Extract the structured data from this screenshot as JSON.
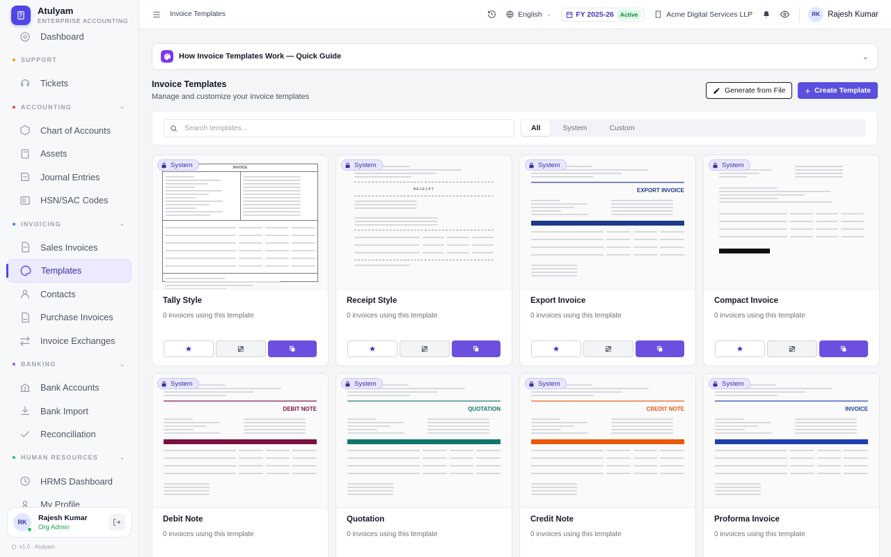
{
  "sidebar": {
    "brand": "Atulyam",
    "brand_sub": "ENTERPRISE ACCOUNTING",
    "top_item": "Dashboard",
    "sections": [
      {
        "label": "SUPPORT",
        "dot": "#f59e0b",
        "items": [
          "Tickets"
        ]
      },
      {
        "label": "ACCOUNTING",
        "dot": "#ef4444",
        "items": [
          "Chart of Accounts",
          "Assets",
          "Journal Entries",
          "HSN/SAC Codes"
        ]
      },
      {
        "label": "INVOICING",
        "dot": "#3b82f6",
        "items": [
          "Sales Invoices",
          "Templates",
          "Contacts",
          "Purchase Invoices",
          "Invoice Exchanges"
        ]
      },
      {
        "label": "BANKING",
        "dot": "#8b5cf6",
        "items": [
          "Bank Accounts",
          "Bank Import",
          "Reconciliation"
        ]
      },
      {
        "label": "HUMAN RESOURCES",
        "dot": "#22c55e",
        "items": [
          "HRMS Dashboard",
          "My Profile"
        ]
      }
    ],
    "user": {
      "initials": "RK",
      "name": "Rajesh Kumar",
      "role": "Org Admin"
    },
    "version": "v1.0 · Atulyam"
  },
  "topbar": {
    "breadcrumb": "Invoice Templates",
    "language": "English",
    "fy": "FY 2025-26",
    "fy_status": "Active",
    "company": "Acme Digital Services LLP",
    "user_initials": "RK",
    "user_name": "Rajesh Kumar"
  },
  "guide": {
    "title": "How Invoice Templates Work — Quick Guide"
  },
  "page": {
    "title": "Invoice Templates",
    "subtitle": "Manage and customize your invoice templates",
    "generate_label": "Generate from File",
    "create_label": "Create Template"
  },
  "filter": {
    "search_placeholder": "Search templates...",
    "tabs": [
      "All",
      "System",
      "Custom"
    ],
    "selected": "All"
  },
  "templates": [
    {
      "name": "Tally Style",
      "usage": "0 invoices using this template",
      "badge": "System",
      "header": "INVOICE",
      "accent": "#333333"
    },
    {
      "name": "Receipt Style",
      "usage": "0 invoices using this template",
      "badge": "System",
      "header": "RECEIPT",
      "accent": "#555555"
    },
    {
      "name": "Export Invoice",
      "usage": "0 invoices using this template",
      "badge": "System",
      "header": "EXPORT INVOICE",
      "accent": "#1e3a8a"
    },
    {
      "name": "Compact Invoice",
      "usage": "0 invoices using this template",
      "badge": "System",
      "header": "",
      "accent": "#111111"
    },
    {
      "name": "Debit Note",
      "usage": "0 invoices using this template",
      "badge": "System",
      "header": "DEBIT NOTE",
      "accent": "#7a1042"
    },
    {
      "name": "Quotation",
      "usage": "0 invoices using this template",
      "badge": "System",
      "header": "QUOTATION",
      "accent": "#0f766e"
    },
    {
      "name": "Credit Note",
      "usage": "0 invoices using this template",
      "badge": "System",
      "header": "CREDIT NOTE",
      "accent": "#ea580c"
    },
    {
      "name": "Proforma Invoice",
      "usage": "0 invoices using this template",
      "badge": "System",
      "header": "INVOICE",
      "accent": "#1e40af"
    }
  ]
}
